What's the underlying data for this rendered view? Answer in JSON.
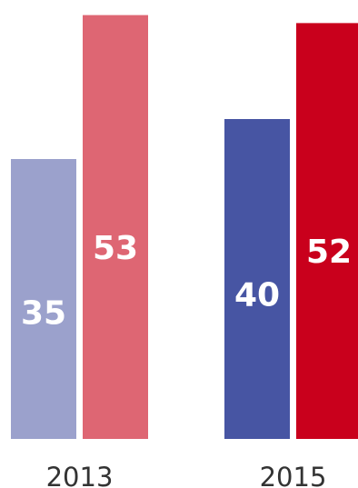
{
  "chart_data": {
    "type": "bar",
    "categories": [
      "2013",
      "2015"
    ],
    "series": [
      {
        "values": [
          35,
          40
        ],
        "colors": [
          "#9ba1cc",
          "#4755a3"
        ]
      },
      {
        "values": [
          53,
          52
        ],
        "colors": [
          "#de6673",
          "#c9001c"
        ]
      }
    ],
    "title": "",
    "xlabel": "",
    "ylabel": "",
    "ylim": [
      0,
      54
    ],
    "grid": false,
    "data_labels": true
  }
}
